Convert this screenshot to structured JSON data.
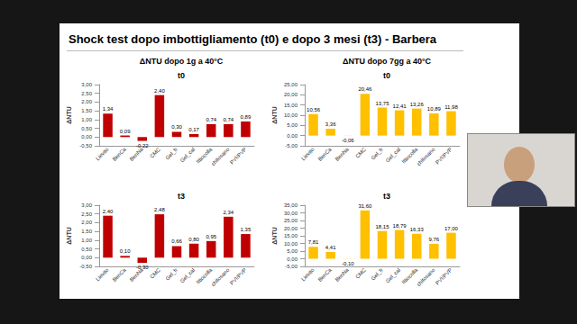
{
  "title": "Shock test dopo imbottigliamento (t0) e dopo 3 mesi (t3) - Barbera",
  "chart_data": [
    {
      "type": "bar",
      "title": "ΔNTU dopo 1g a 40°C",
      "subtitle": "t0",
      "y_label": "ΔNTU",
      "categories": [
        "Lievito",
        "BenCa",
        "BenNa",
        "CMC",
        "Gel_fr",
        "Gel_cal",
        "Ittiocolla",
        "chitosano",
        "PVI/PVP"
      ],
      "values": [
        1.34,
        0.09,
        -0.22,
        2.4,
        0.3,
        0.17,
        0.74,
        0.74,
        0.89
      ],
      "value_labels": [
        "1,34",
        "0,09",
        "-0,22",
        "2,40",
        "0,30",
        "0,17",
        "0,74",
        "0,74",
        "0,89"
      ],
      "color": "#c00000",
      "ylim": [
        -0.5,
        3.0
      ],
      "yticks": [
        {
          "value": -0.5,
          "label": "-0,50"
        },
        {
          "value": 0,
          "label": "0,00"
        },
        {
          "value": 0.5,
          "label": "0,50"
        },
        {
          "value": 1.0,
          "label": "1,00"
        },
        {
          "value": 1.5,
          "label": "1,50"
        },
        {
          "value": 2.0,
          "label": "2,00"
        },
        {
          "value": 2.5,
          "label": "2,50"
        },
        {
          "value": 3.0,
          "label": "3,00"
        }
      ],
      "grid": false,
      "data_labels": true
    },
    {
      "type": "bar",
      "title": "ΔNTU dopo 7gg a 40°C",
      "subtitle": "t0",
      "y_label": "ΔNTU",
      "categories": [
        "Lievito",
        "BenCa",
        "BenNa",
        "CMC",
        "Gel_fr",
        "Gel_cal",
        "Ittiocolla",
        "chitosano",
        "PVI/PVP"
      ],
      "values": [
        10.56,
        3.36,
        -0.06,
        20.46,
        13.75,
        12.41,
        13.26,
        10.89,
        11.98
      ],
      "value_labels": [
        "10,56",
        "3,36",
        "-0,06",
        "20,46",
        "13,75",
        "12,41",
        "13,26",
        "10,89",
        "11,98"
      ],
      "color": "#ffc000",
      "ylim": [
        -5,
        25
      ],
      "yticks": [
        {
          "value": -5,
          "label": "-5,00"
        },
        {
          "value": 0,
          "label": "0,00"
        },
        {
          "value": 5,
          "label": "5,00"
        },
        {
          "value": 10,
          "label": "10,00"
        },
        {
          "value": 15,
          "label": "15,00"
        },
        {
          "value": 20,
          "label": "20,00"
        },
        {
          "value": 25,
          "label": "25,00"
        }
      ],
      "grid": false,
      "data_labels": true
    },
    {
      "type": "bar",
      "subtitle": "t3",
      "y_label": "ΔNTU",
      "categories": [
        "Lievito",
        "BenCa",
        "BenNa",
        "CMC",
        "Gel_fr",
        "Gel_cal",
        "Ittiocolla",
        "chitosano",
        "PVI/PVP"
      ],
      "values": [
        2.4,
        0.1,
        -0.3,
        2.48,
        0.66,
        0.8,
        0.95,
        2.34,
        1.35
      ],
      "value_labels": [
        "2,40",
        "0,10",
        "-0,30",
        "2,48",
        "0,66",
        "0,80",
        "0,95",
        "2,34",
        "1,35"
      ],
      "color": "#c00000",
      "ylim": [
        -0.5,
        3.0
      ],
      "yticks": [
        {
          "value": -0.5,
          "label": "-0,50"
        },
        {
          "value": 0,
          "label": "0,00"
        },
        {
          "value": 0.5,
          "label": "0,50"
        },
        {
          "value": 1.0,
          "label": "1,00"
        },
        {
          "value": 1.5,
          "label": "1,50"
        },
        {
          "value": 2.0,
          "label": "2,00"
        },
        {
          "value": 2.5,
          "label": "2,50"
        },
        {
          "value": 3.0,
          "label": "3,00"
        }
      ],
      "grid": false,
      "data_labels": true
    },
    {
      "type": "bar",
      "subtitle": "t3",
      "y_label": "ΔNTU",
      "categories": [
        "Lievito",
        "BenCa",
        "BenNa",
        "CMC",
        "Gel_fr",
        "Gel_cal",
        "Ittiocolla",
        "chitosano",
        "PVI/PVP"
      ],
      "values": [
        7.81,
        4.41,
        -0.1,
        31.6,
        18.15,
        18.79,
        16.33,
        9.76,
        17.0
      ],
      "value_labels": [
        "7,81",
        "4,41",
        "-0,10",
        "31,60",
        "18,15",
        "18,79",
        "16,33",
        "9,76",
        "17,00"
      ],
      "color": "#ffc000",
      "ylim": [
        -5,
        35
      ],
      "yticks": [
        {
          "value": -5,
          "label": "-5,00"
        },
        {
          "value": 0,
          "label": "0,00"
        },
        {
          "value": 5,
          "label": "5,00"
        },
        {
          "value": 10,
          "label": "10,00"
        },
        {
          "value": 15,
          "label": "15,00"
        },
        {
          "value": 20,
          "label": "20,00"
        },
        {
          "value": 25,
          "label": "25,00"
        },
        {
          "value": 30,
          "label": "30,00"
        },
        {
          "value": 35,
          "label": "35,00"
        }
      ],
      "grid": false,
      "data_labels": true
    }
  ]
}
